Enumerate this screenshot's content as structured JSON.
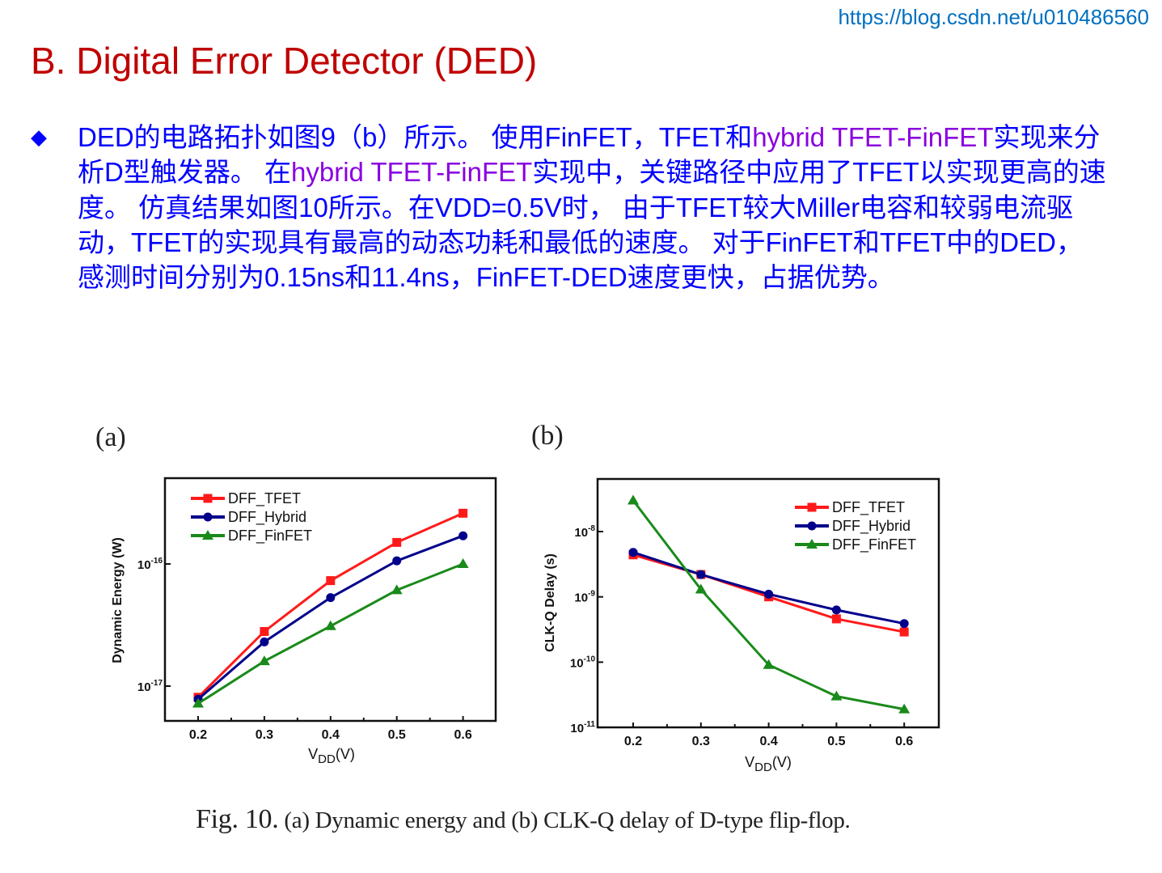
{
  "header": {
    "url": "https://blog.csdn.net/u010486560",
    "title": "B. Digital Error Detector (DED)"
  },
  "colors": {
    "title": "#c00000",
    "body_text": "#0000ff",
    "highlight_text": "#8a00e0",
    "url": "#0070c0",
    "tfet": "#ff1a1a",
    "hybrid": "#00008b",
    "finfet": "#1a8a1a"
  },
  "bullet": {
    "icon": "diamond-bullet",
    "glyph": "◆",
    "segments": [
      {
        "text": "DED的电路拓扑如图9（b）所示。 使用FinFET，TFET和",
        "hl": false
      },
      {
        "text": "hybrid TFET-FinFET",
        "hl": true
      },
      {
        "text": "实现来分析D型触发器。 在",
        "hl": false
      },
      {
        "text": "hybrid TFET-FinFET",
        "hl": true
      },
      {
        "text": "实现中，关键路径中应用了TFET以实现更高的速度。 仿真结果如图10所示。在VDD=0.5V时， 由于TFET较大Miller电容和较弱电流驱动，TFET的实现具有最高的动态功耗和最低的速度。 对于FinFET和TFET中的DED，感测时间分别为0.15ns和11.4ns，FinFET-DED速度更快，占据优势。",
        "hl": false
      }
    ]
  },
  "figure": {
    "caption_fig": "Fig. 10.",
    "caption_text": " (a) Dynamic energy and (b) CLK-Q delay of D-type flip-flop."
  },
  "chart_data": [
    {
      "panel": "(a)",
      "type": "line",
      "title": "",
      "xlabel": "VDD(V)",
      "ylabel": "Dynamic Energy (W)",
      "yscale": "log",
      "x": [
        0.2,
        0.3,
        0.4,
        0.5,
        0.6
      ],
      "xticks": [
        "0.2",
        "0.3",
        "0.4",
        "0.5",
        "0.6"
      ],
      "yticks": [
        "10^-17",
        "10^-16"
      ],
      "xlim": [
        0.15,
        0.65
      ],
      "ylim": [
        5.2e-18,
        5e-16
      ],
      "grid": false,
      "legend_position": "upper left",
      "series": [
        {
          "name": "DFF_TFET",
          "marker": "square",
          "color": "#ff1a1a",
          "values": [
            8.1e-18,
            2.8e-17,
            7.3e-17,
            1.5e-16,
            2.6e-16
          ]
        },
        {
          "name": "DFF_Hybrid",
          "marker": "circle",
          "color": "#00008b",
          "values": [
            7.8e-18,
            2.3e-17,
            5.3e-17,
            1.06e-16,
            1.7e-16
          ]
        },
        {
          "name": "DFF_FinFET",
          "marker": "triangle",
          "color": "#1a8a1a",
          "values": [
            7.2e-18,
            1.6e-17,
            3.1e-17,
            6.1e-17,
            1e-16
          ]
        }
      ]
    },
    {
      "panel": "(b)",
      "type": "line",
      "title": "",
      "xlabel": "VDD(V)",
      "ylabel": "CLK-Q Delay (s)",
      "yscale": "log",
      "x": [
        0.2,
        0.3,
        0.4,
        0.5,
        0.6
      ],
      "xticks": [
        "0.2",
        "0.3",
        "0.4",
        "0.5",
        "0.6"
      ],
      "yticks": [
        "10^-11",
        "10^-10",
        "10^-9",
        "10^-8"
      ],
      "xlim": [
        0.15,
        0.65
      ],
      "ylim": [
        1e-11,
        6.3e-08
      ],
      "grid": false,
      "legend_position": "upper right",
      "series": [
        {
          "name": "DFF_TFET",
          "marker": "square",
          "color": "#ff1a1a",
          "values": [
            4.4e-09,
            2.2e-09,
            1e-09,
            4.6e-10,
            2.9e-10
          ]
        },
        {
          "name": "DFF_Hybrid",
          "marker": "circle",
          "color": "#00008b",
          "values": [
            4.8e-09,
            2.2e-09,
            1.1e-09,
            6.3e-10,
            3.9e-10
          ]
        },
        {
          "name": "DFF_FinFET",
          "marker": "triangle",
          "color": "#1a8a1a",
          "values": [
            3e-08,
            1.3e-09,
            9.1e-11,
            3e-11,
            1.9e-11
          ]
        }
      ]
    }
  ]
}
